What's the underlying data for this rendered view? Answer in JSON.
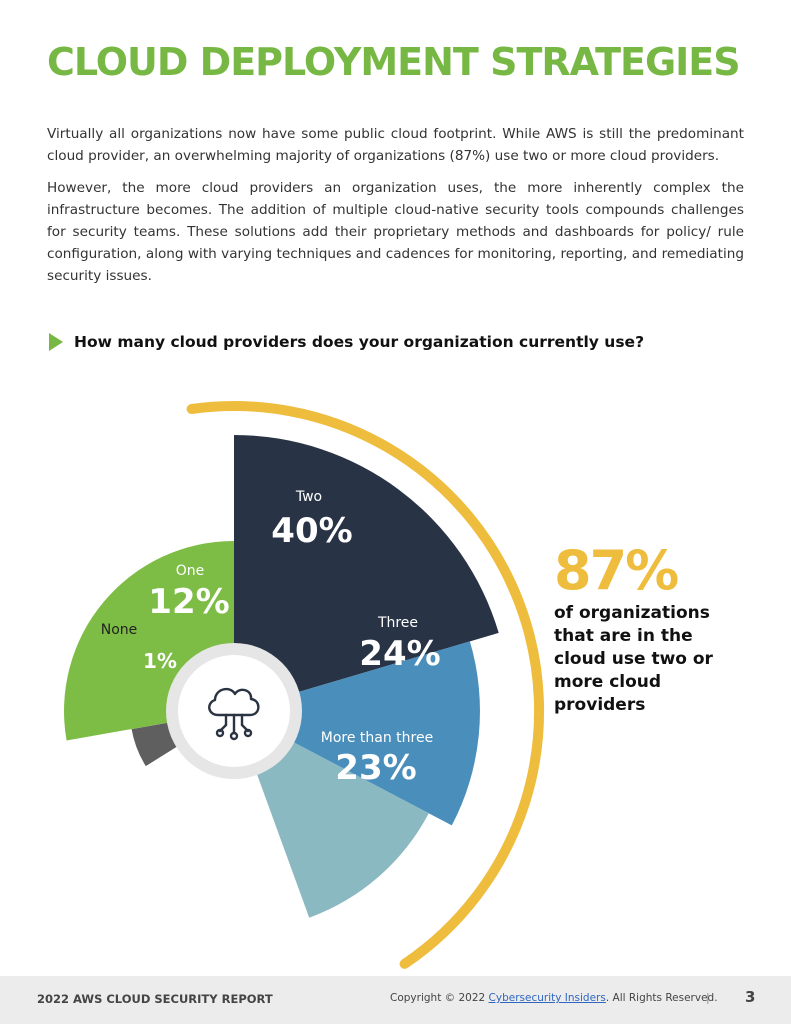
{
  "page": {
    "title": "CLOUD DEPLOYMENT STRATEGIES",
    "paragraphs": [
      "Virtually all organizations now have some public cloud footprint. While AWS is still the predominant cloud provider, an overwhelming majority of organizations (87%) use two or more cloud providers.",
      "However, the more cloud providers an organization uses, the more inherently complex the infrastructure becomes. The addition of multiple cloud-native security tools compounds challenges for security teams. These solutions add their proprietary methods and dashboards for policy/ rule configuration, along with varying techniques and cadences for monitoring, reporting, and remediating security issues."
    ],
    "question": "How many cloud providers does your organization currently use?"
  },
  "chart_data": {
    "type": "pie",
    "title": "How many cloud providers does your organization currently use?",
    "categories": [
      "None",
      "One",
      "Two",
      "Three",
      "More than three"
    ],
    "values": [
      1,
      12,
      40,
      24,
      23
    ],
    "labels": [
      "1%",
      "12%",
      "40%",
      "24%",
      "23%"
    ],
    "colors": [
      "#5f5f5f",
      "#7dbd45",
      "#283445",
      "#4a8ebc",
      "#8ab9c1"
    ],
    "center_icon": "cloud-network-icon",
    "highlight_color": "#efbd3e"
  },
  "callout": {
    "percent": "87%",
    "text": "of organizations that are in the cloud use two or more cloud providers"
  },
  "footer": {
    "report": "2022 AWS CLOUD SECURITY REPORT",
    "copyright_prefix": "Copyright © 2022 ",
    "link": "Cybersecurity Insiders",
    "copyright_suffix": ". All Rights Reserved.",
    "separator": "|",
    "page_number": "3"
  }
}
